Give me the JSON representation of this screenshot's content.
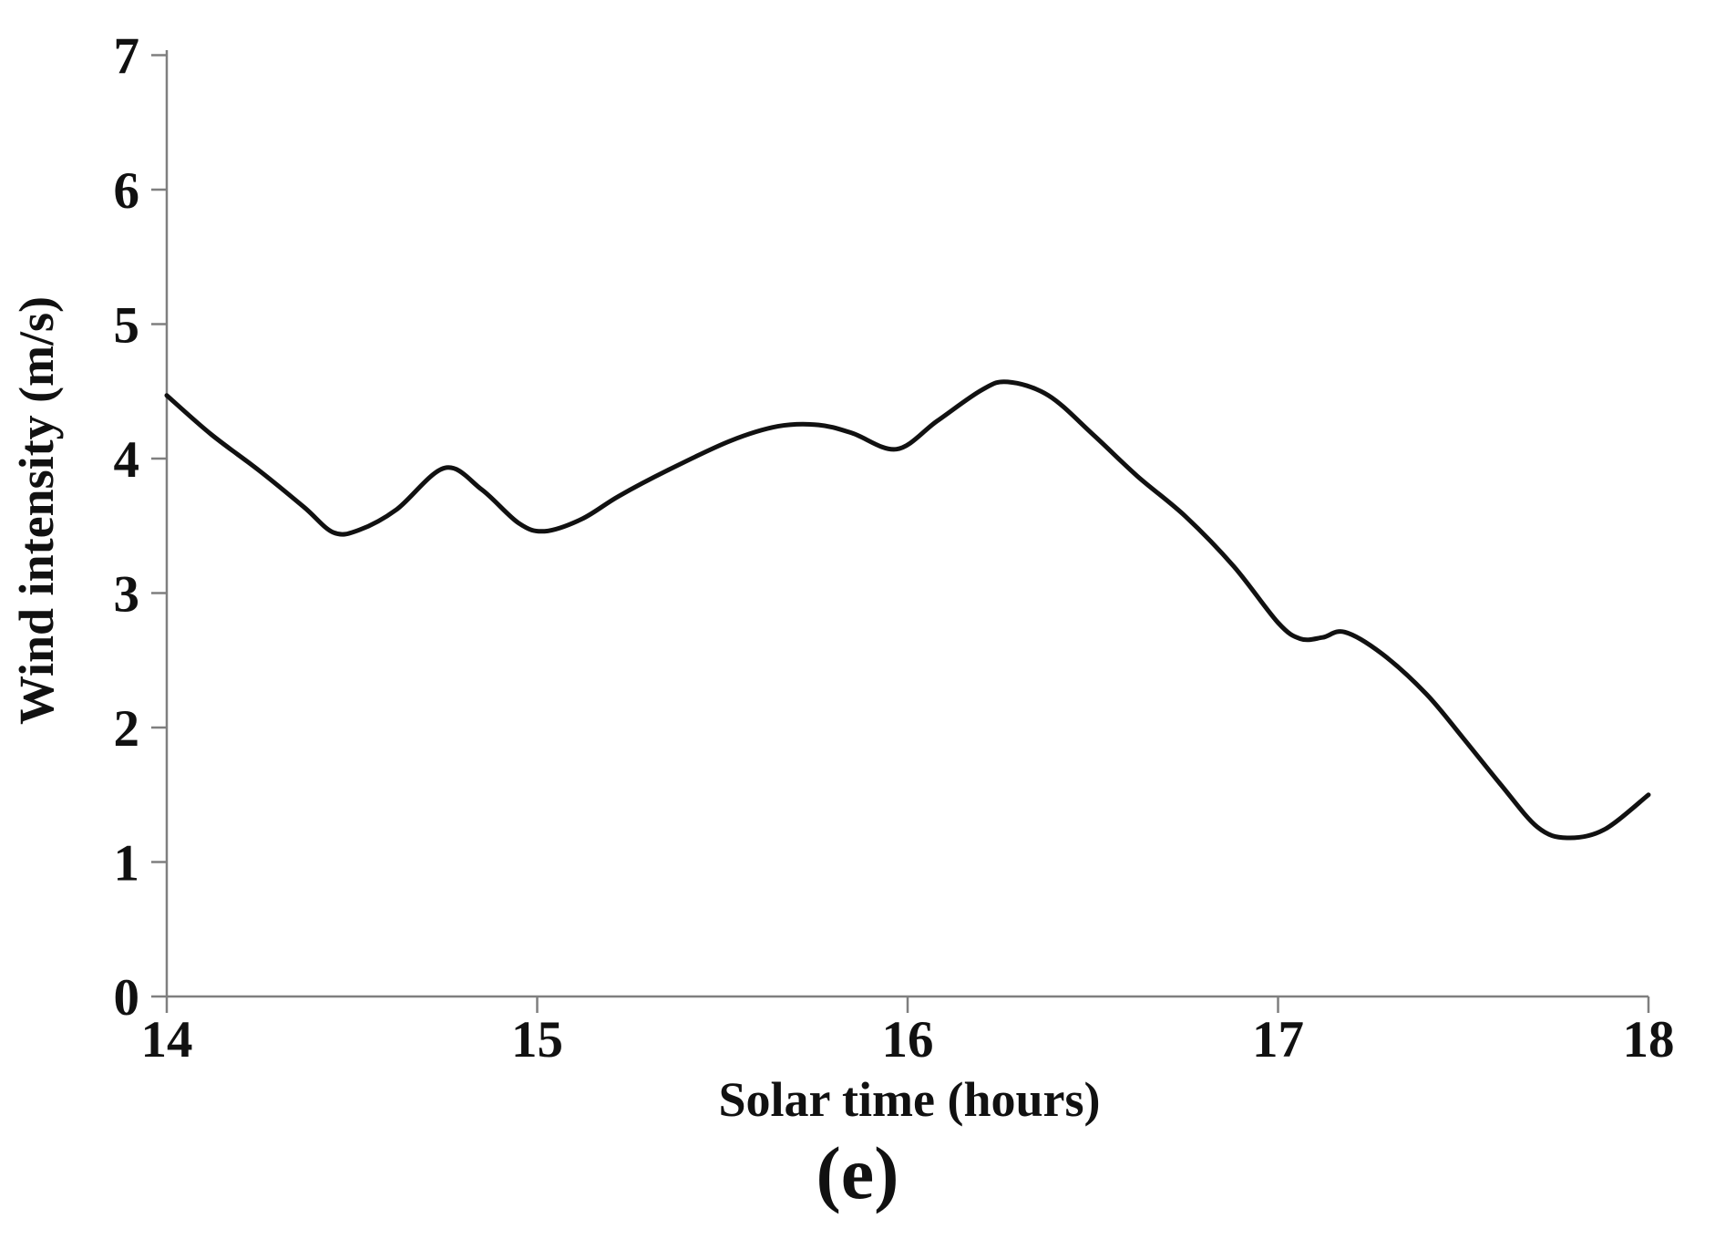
{
  "figure": {
    "caption": "(e)"
  },
  "chart_data": {
    "type": "line",
    "title": "",
    "xlabel": "Solar time (hours)",
    "ylabel": "Wind intensity (m/s)",
    "xlim": [
      14,
      18
    ],
    "ylim": [
      0,
      7
    ],
    "xticks": [
      14,
      15,
      16,
      17,
      18
    ],
    "yticks": [
      0,
      1,
      2,
      3,
      4,
      5,
      6,
      7
    ],
    "grid": false,
    "legend": false,
    "colors": {
      "line": "#111111",
      "axis": "#7f7f7f",
      "text": "#111111"
    },
    "series": [
      {
        "name": "Wind intensity",
        "points": [
          [
            14.0,
            4.47
          ],
          [
            14.12,
            4.18
          ],
          [
            14.25,
            3.91
          ],
          [
            14.37,
            3.64
          ],
          [
            14.45,
            3.45
          ],
          [
            14.52,
            3.47
          ],
          [
            14.62,
            3.62
          ],
          [
            14.75,
            3.93
          ],
          [
            14.85,
            3.77
          ],
          [
            14.95,
            3.52
          ],
          [
            15.02,
            3.46
          ],
          [
            15.12,
            3.55
          ],
          [
            15.22,
            3.72
          ],
          [
            15.35,
            3.91
          ],
          [
            15.52,
            4.13
          ],
          [
            15.65,
            4.24
          ],
          [
            15.76,
            4.25
          ],
          [
            15.85,
            4.19
          ],
          [
            15.97,
            4.07
          ],
          [
            16.08,
            4.28
          ],
          [
            16.2,
            4.51
          ],
          [
            16.27,
            4.57
          ],
          [
            16.38,
            4.47
          ],
          [
            16.5,
            4.18
          ],
          [
            16.62,
            3.87
          ],
          [
            16.75,
            3.57
          ],
          [
            16.88,
            3.2
          ],
          [
            17.0,
            2.78
          ],
          [
            17.06,
            2.66
          ],
          [
            17.12,
            2.67
          ],
          [
            17.18,
            2.71
          ],
          [
            17.28,
            2.55
          ],
          [
            17.4,
            2.25
          ],
          [
            17.5,
            1.92
          ],
          [
            17.6,
            1.58
          ],
          [
            17.7,
            1.26
          ],
          [
            17.78,
            1.18
          ],
          [
            17.88,
            1.24
          ],
          [
            18.0,
            1.5
          ]
        ]
      }
    ]
  }
}
